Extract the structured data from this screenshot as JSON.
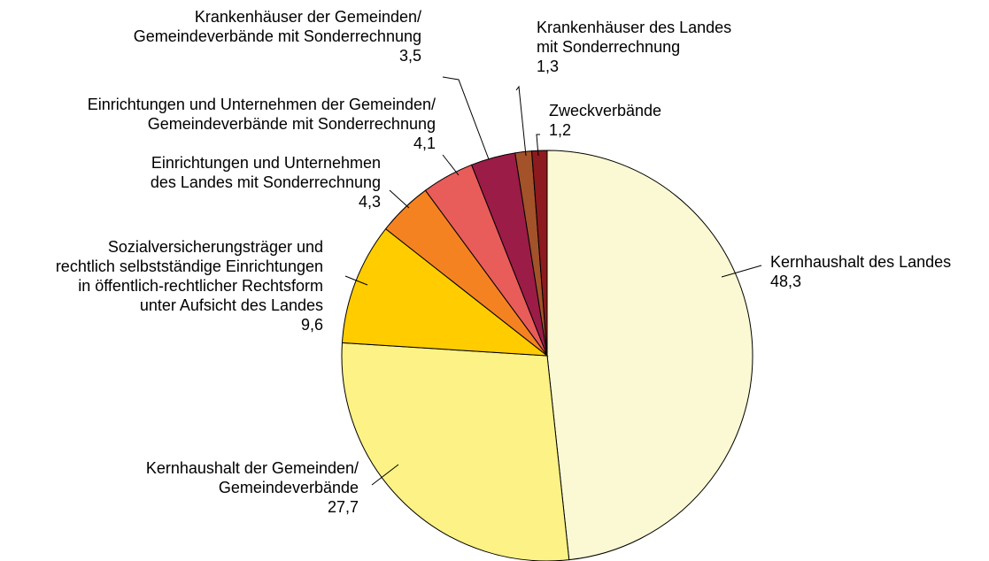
{
  "chart_data": {
    "type": "pie",
    "categories": [
      "Kernhaushalt des Landes",
      "Kernhaushalt der Gemeinden/\nGemeindeverbände",
      "Sozialversicherungsträger und\nrechtlich selbstständige Einrichtungen\nin öffentlich-rechtlicher Rechtsform\nunter Aufsicht des Landes",
      "Einrichtungen und Unternehmen\ndes Landes mit Sonderrechnung",
      "Einrichtungen und Unternehmen der Gemeinden/\nGemeindeverbände mit Sonderrechnung",
      "Krankenhäuser der Gemeinden/\nGemeindeverbände mit Sonderrechnung",
      "Krankenhäuser des Landes\nmit Sonderrechnung",
      "Zweckverbände"
    ],
    "values": [
      48.3,
      27.7,
      9.6,
      4.3,
      4.1,
      3.5,
      1.3,
      1.2
    ],
    "value_labels": [
      "48,3",
      "27,7",
      "9,6",
      "4,3",
      "4,1",
      "3,5",
      "1,3",
      "1,2"
    ],
    "colors": [
      "#fbf9d3",
      "#fcf285",
      "#ffcc00",
      "#f58220",
      "#e85c5a",
      "#9b1c46",
      "#a3522a",
      "#8c1a1e"
    ]
  }
}
